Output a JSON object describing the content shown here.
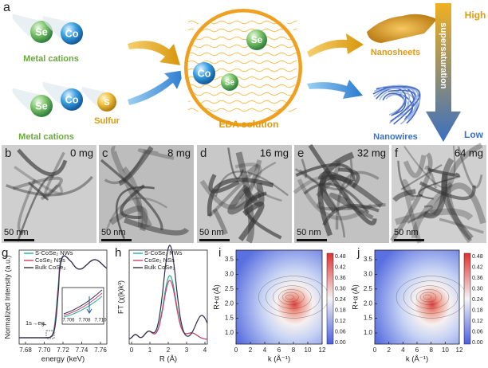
{
  "panel_a": {
    "label": "a",
    "top_group": {
      "ions": [
        "Se",
        "Co"
      ],
      "caption": "Metal cations"
    },
    "bottom_group": {
      "ions": [
        "Se",
        "Co"
      ],
      "caption": "Metal cations",
      "sulfur_ion": "S",
      "sulfur_caption": "Sulfur"
    },
    "solution": {
      "ions": [
        "Se",
        "Co",
        "Se"
      ],
      "caption": "EDA solution"
    },
    "products": [
      "Nanosheets",
      "Nanowires"
    ],
    "gradient": {
      "label": "supersaturation",
      "high": "High",
      "low": "Low"
    }
  },
  "tem_panels": [
    {
      "label": "b",
      "amount": "0 mg",
      "scale": "50 nm"
    },
    {
      "label": "c",
      "amount": "8 mg",
      "scale": "50 nm"
    },
    {
      "label": "d",
      "amount": "16 mg",
      "scale": "50 nm"
    },
    {
      "label": "e",
      "amount": "32 mg",
      "scale": "50 nm"
    },
    {
      "label": "f",
      "amount": "64 mg",
      "scale": "50 nm"
    }
  ],
  "panel_g": {
    "label": "g",
    "ylabel": "Normalized Intensity (a.u.)",
    "xlabel": "energy (keV)",
    "xticks": [
      "7.68",
      "7.70",
      "7.72",
      "7.74",
      "7.76"
    ],
    "legend": [
      "S-CoSe₂ NWs",
      "CoSe₂ NSs",
      "Bulk CoSe₂"
    ],
    "annotation": "1s→eg",
    "inset_xticks": [
      "7.706",
      "7.708",
      "7.710"
    ]
  },
  "panel_h": {
    "label": "h",
    "ylabel": "FT (χ(k)k³)",
    "xlabel": "R (Å)",
    "xticks": [
      "0",
      "1",
      "2",
      "3",
      "4"
    ],
    "legend": [
      "S-CoSe₂ NWs",
      "CoSe₂ NSs",
      "Bulk CoSe₂"
    ]
  },
  "panel_i": {
    "label": "i",
    "ylabel": "R+α (Å)",
    "xlabel": "k (Å⁻¹)",
    "xticks": [
      "0",
      "2",
      "4",
      "6",
      "8",
      "10",
      "12"
    ],
    "yticks": [
      "1.0",
      "1.5",
      "2.0",
      "2.5",
      "3.0",
      "3.5"
    ],
    "colorbar": [
      "0.00",
      "0.06",
      "0.12",
      "0.18",
      "0.24",
      "0.30",
      "0.36",
      "0.42",
      "0.48"
    ]
  },
  "panel_j": {
    "label": "j",
    "ylabel": "R+α (Å)",
    "xlabel": "k (Å⁻¹)",
    "xticks": [
      "0",
      "2",
      "4",
      "6",
      "8",
      "10",
      "12"
    ],
    "yticks": [
      "1.0",
      "1.5",
      "2.0",
      "2.5",
      "3.0",
      "3.5"
    ],
    "colorbar": [
      "0.00",
      "0.06",
      "0.12",
      "0.18",
      "0.24",
      "0.30",
      "0.36",
      "0.42",
      "0.48"
    ]
  }
}
